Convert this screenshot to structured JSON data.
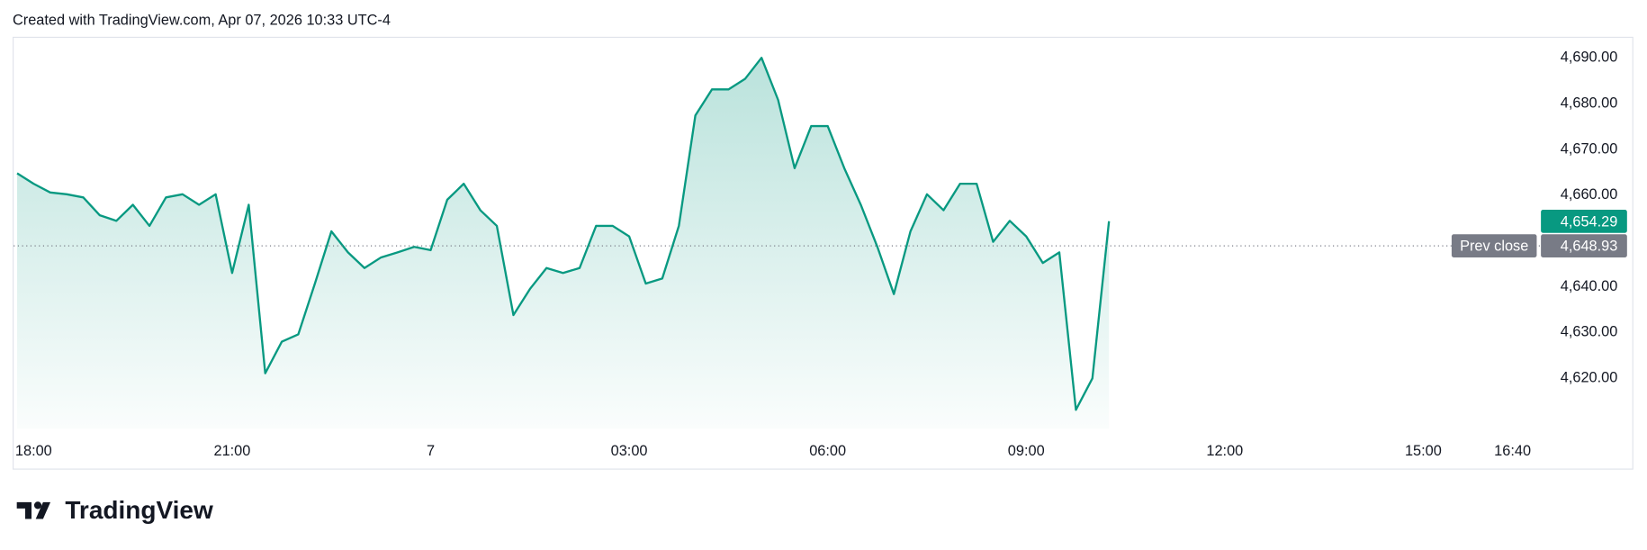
{
  "chart_data": {
    "type": "line",
    "title": "Created with TradingView.com, Apr 07, 2026 10:33 UTC-4",
    "brand": "TradingView",
    "color": "#089981",
    "x": [
      "17:45",
      "18:00",
      "18:15",
      "18:30",
      "18:45",
      "19:00",
      "19:15",
      "19:30",
      "19:45",
      "20:00",
      "20:15",
      "20:30",
      "20:45",
      "21:00",
      "21:15",
      "21:30",
      "21:45",
      "22:00",
      "22:15",
      "22:30",
      "22:45",
      "23:00",
      "23:15",
      "23:30",
      "23:45",
      "00:00",
      "00:15",
      "00:30",
      "00:45",
      "01:00",
      "01:15",
      "01:30",
      "01:45",
      "02:00",
      "02:15",
      "02:30",
      "02:45",
      "03:00",
      "03:15",
      "03:30",
      "03:45",
      "04:00",
      "04:15",
      "04:30",
      "04:45",
      "05:00",
      "05:15",
      "05:30",
      "05:45",
      "06:00",
      "06:15",
      "06:30",
      "06:45",
      "07:00",
      "07:15",
      "07:30",
      "07:45",
      "08:00",
      "08:15",
      "08:30",
      "08:45",
      "09:00",
      "09:15",
      "09:30",
      "09:45",
      "10:00",
      "10:15"
    ],
    "values": [
      4664.8,
      4662.5,
      4660.6,
      4660.2,
      4659.5,
      4655.6,
      4654.4,
      4657.9,
      4653.3,
      4659.5,
      4660.2,
      4657.9,
      4660.2,
      4643.0,
      4657.9,
      4621.1,
      4628.0,
      4629.6,
      4640.7,
      4652.1,
      4647.5,
      4644.1,
      4646.4,
      4647.5,
      4648.7,
      4648.0,
      4659.0,
      4662.5,
      4656.7,
      4653.3,
      4633.8,
      4639.5,
      4644.1,
      4643.0,
      4644.1,
      4653.3,
      4653.3,
      4651.0,
      4640.7,
      4641.8,
      4653.3,
      4677.4,
      4683.1,
      4683.1,
      4685.4,
      4690.0,
      4680.8,
      4665.9,
      4675.1,
      4675.1,
      4665.9,
      4657.9,
      4648.7,
      4638.4,
      4652.1,
      4660.2,
      4656.7,
      4662.5,
      4662.5,
      4649.8,
      4654.4,
      4651.0,
      4645.2,
      4647.5,
      4613.1,
      4620.0,
      4654.29
    ],
    "ylim": [
      4609,
      4694.6
    ],
    "yticks": [
      {
        "value": 4620,
        "label": "4,620.00"
      },
      {
        "value": 4630,
        "label": "4,630.00"
      },
      {
        "value": 4640,
        "label": "4,640.00"
      },
      {
        "value": 4650,
        "label": "4,650.00"
      },
      {
        "value": 4660,
        "label": "4,660.00"
      },
      {
        "value": 4670,
        "label": "4,670.00"
      },
      {
        "value": 4680,
        "label": "4,680.00"
      },
      {
        "value": 4690,
        "label": "4,690.00"
      }
    ],
    "xticks": [
      "18:00",
      "21:00",
      {
        "value": "00:00",
        "label": "7"
      },
      "03:00",
      "06:00",
      "09:00",
      "12:00",
      "15:00",
      "16:40"
    ],
    "last_price": {
      "value": 4654.29,
      "label": "4,654.29",
      "color": "#089981"
    },
    "prev_close": {
      "name": "Prev close",
      "value": 4648.93,
      "label": "4,648.93",
      "color": "#787b86"
    }
  }
}
